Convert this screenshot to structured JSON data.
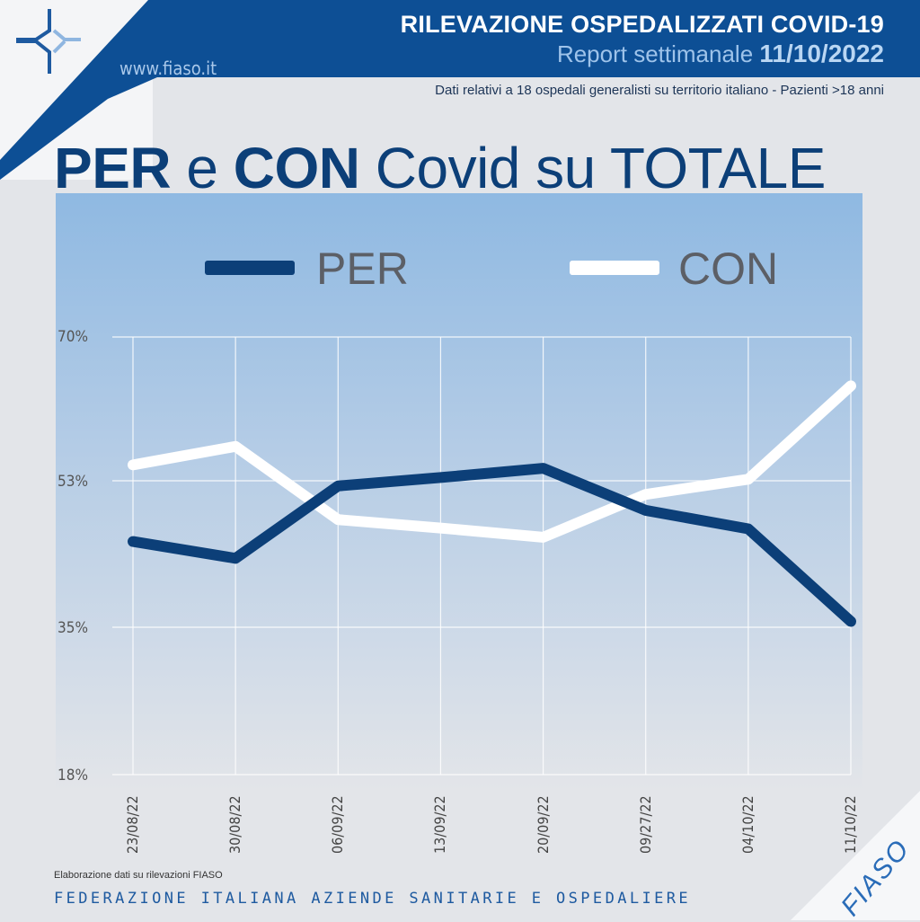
{
  "header": {
    "title": "RILEVAZIONE OSPEDALIZZATI COVID-19",
    "subtitle_prefix": "Report settimanale",
    "report_date": "11/10/2022",
    "website": "www.fiaso.it",
    "note": "Dati relativi a 18 ospedali generalisti su territorio italiano - Pazienti >18 anni"
  },
  "colors": {
    "brand_blue": "#0c3f78",
    "header_blue": "#0d4f95",
    "con_line": "#ffffff"
  },
  "chart_data": {
    "type": "line",
    "title_parts": [
      "PER",
      "e",
      "CON",
      "Covid su TOTALE"
    ],
    "categories": [
      "23/08/22",
      "30/08/22",
      "06/09/22",
      "13/09/22",
      "20/09/22",
      "09/27/22",
      "04/10/22",
      "11/10/22"
    ],
    "series": [
      {
        "name": "PER",
        "color": "#0c3f78",
        "values": [
          45.7,
          43.7,
          52.3,
          53.3,
          54.4,
          49.4,
          47.2,
          36.2
        ]
      },
      {
        "name": "CON",
        "color": "#ffffff",
        "values": [
          54.8,
          57.0,
          48.3,
          47.3,
          46.2,
          51.3,
          53.1,
          64.2
        ]
      }
    ],
    "yticks": [
      "70%",
      "53%",
      "35%",
      "18%"
    ],
    "ylim": [
      18,
      70
    ],
    "grid": true,
    "legend": "top"
  },
  "footer": {
    "source": "Elaborazione dati su rilevazioni FIASO",
    "org": "FEDERAZIONE ITALIANA AZIENDE SANITARIE E OSPEDALIERE",
    "logo_text": "FIASO"
  }
}
